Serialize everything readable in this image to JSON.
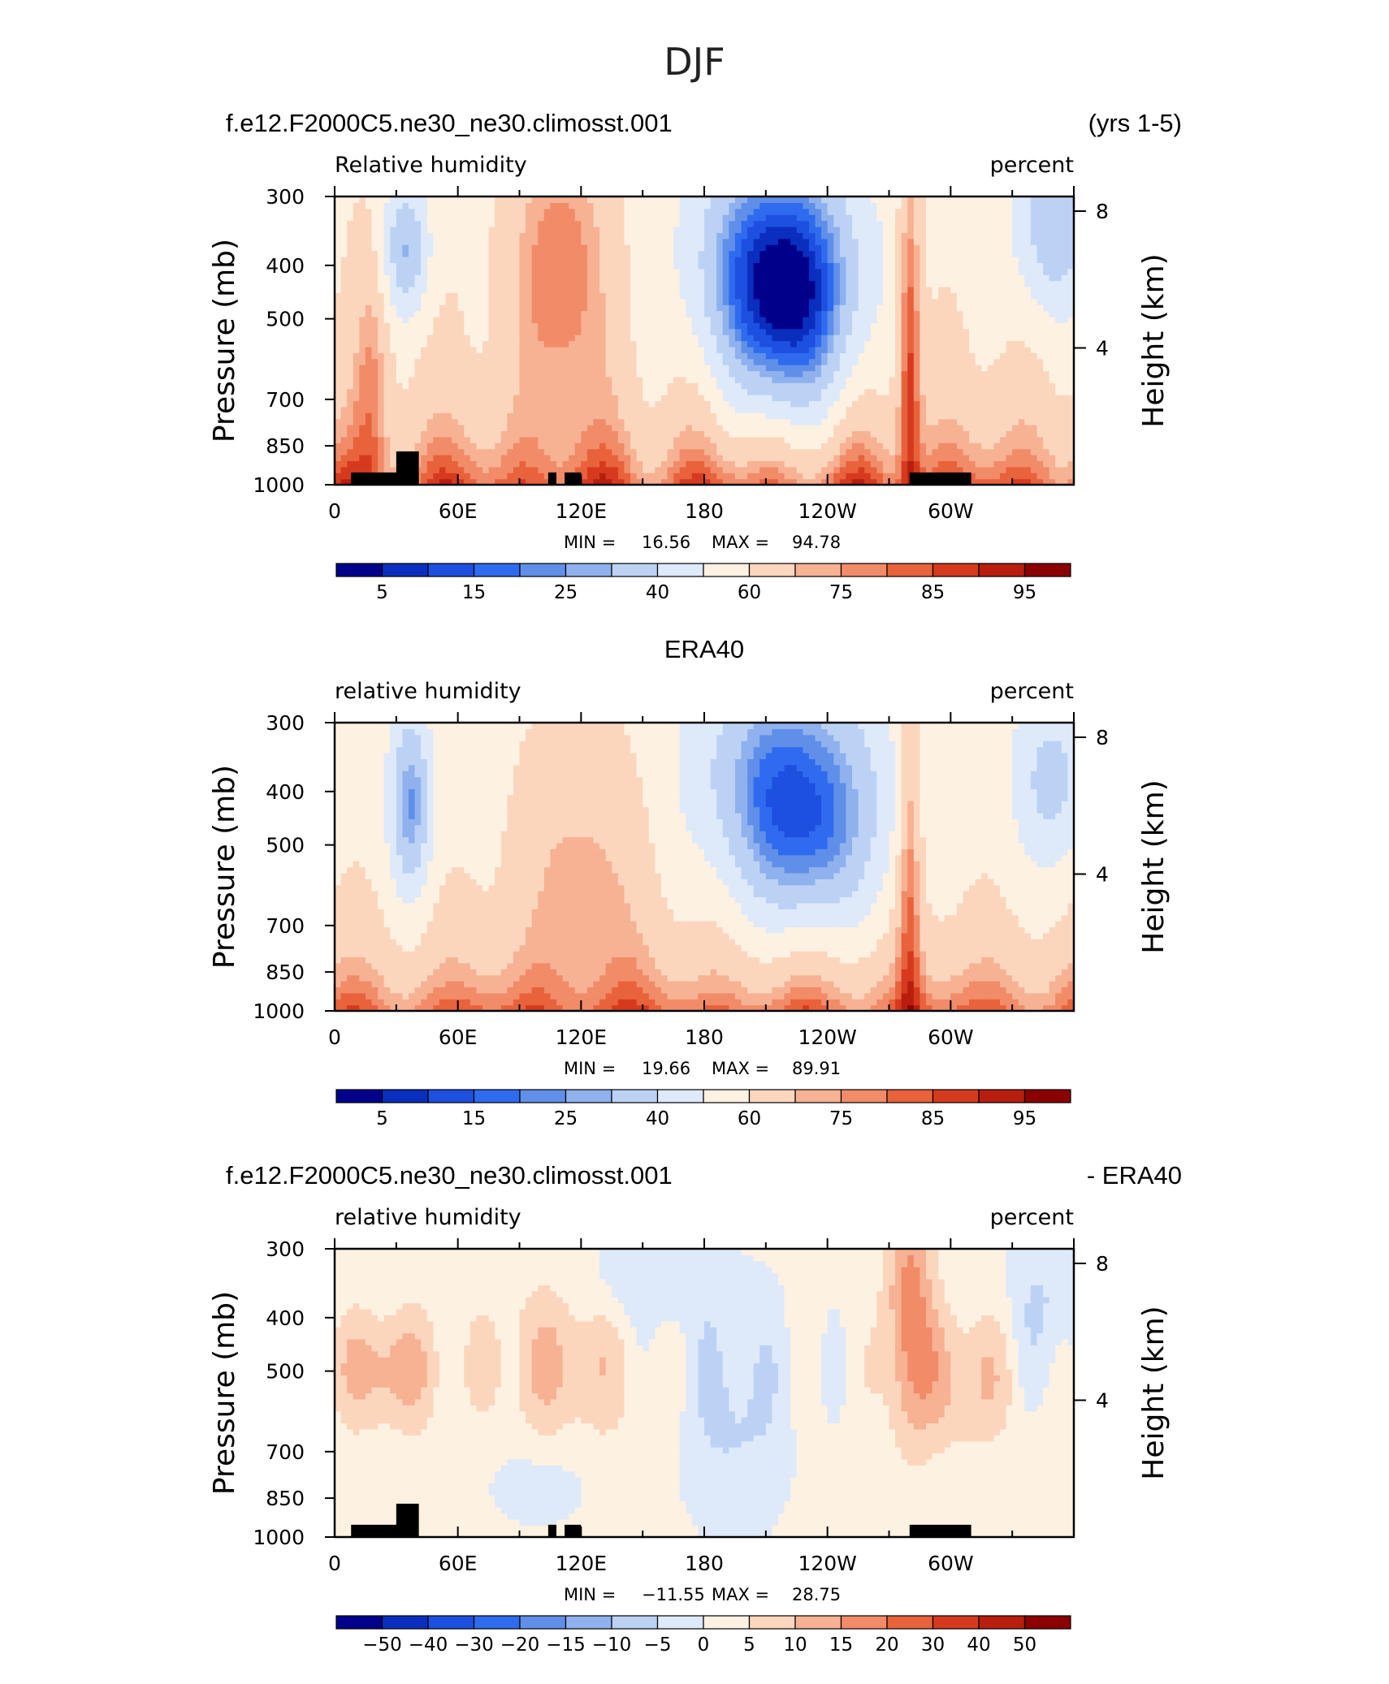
{
  "figure": {
    "title": "DJF"
  },
  "colors": {
    "rh_levels": [
      "#00008b",
      "#0a2fbf",
      "#1d4fe0",
      "#2f6bef",
      "#5f8fe8",
      "#8fb1ee",
      "#bcd2f5",
      "#dee9fa",
      "#fdf1e2",
      "#fbd6bd",
      "#f7b193",
      "#f18b68",
      "#e8623c",
      "#d63a1e",
      "#b81e0e",
      "#8b0000"
    ],
    "diff_levels": [
      "#00008b",
      "#0a2fbf",
      "#1d4fe0",
      "#2f6bef",
      "#5f8fe8",
      "#8fb1ee",
      "#bcd2f5",
      "#dee9fa",
      "#fdf1e2",
      "#fbd6bd",
      "#f7b193",
      "#f18b68",
      "#e8623c",
      "#d63a1e",
      "#b81e0e",
      "#8b0000"
    ]
  },
  "panels": [
    {
      "header_left": "f.e12.F2000C5.ne30_ne30.climosst.001",
      "header_right": "(yrs 1-5)",
      "header_center": "",
      "left_label": "Relative humidity",
      "right_label": "percent",
      "ylabel": "Pressure (mb)",
      "y2label": "Height (km)",
      "stats": {
        "min_label": "MIN =",
        "min": "16.56",
        "max_label": "MAX =",
        "max": "94.78"
      },
      "colorbar_labels": [
        "5",
        "15",
        "25",
        "40",
        "60",
        "75",
        "85",
        "95"
      ],
      "palette": "rh_levels",
      "land_mask": true
    },
    {
      "header_left": "",
      "header_right": "",
      "header_center": "ERA40",
      "left_label": "relative humidity",
      "right_label": "percent",
      "ylabel": "Pressure (mb)",
      "y2label": "Height (km)",
      "stats": {
        "min_label": "MIN =",
        "min": "19.66",
        "max_label": "MAX =",
        "max": "89.91"
      },
      "colorbar_labels": [
        "5",
        "15",
        "25",
        "40",
        "60",
        "75",
        "85",
        "95"
      ],
      "palette": "rh_levels",
      "land_mask": false
    },
    {
      "header_left": "f.e12.F2000C5.ne30_ne30.climosst.001",
      "header_right": "- ERA40",
      "header_center": "",
      "left_label": "relative humidity",
      "right_label": "percent",
      "ylabel": "Pressure (mb)",
      "y2label": "Height (km)",
      "stats": {
        "min_label": "MIN =",
        "min": "−11.55",
        "max_label": "MAX =",
        "max": "28.75"
      },
      "colorbar_labels": [
        "−50",
        "−40",
        "−30",
        "−20",
        "−15",
        "−10",
        "−5",
        "0",
        "5",
        "10",
        "15",
        "20",
        "30",
        "40",
        "50"
      ],
      "palette": "diff_levels",
      "land_mask": true
    }
  ],
  "chart_data": [
    {
      "type": "heatmap",
      "title": "f.e12.F2000C5.ne30_ne30.climosst.001 (yrs 1-5)",
      "variable": "Relative humidity",
      "units": "percent",
      "x_ticks": [
        "0",
        "60E",
        "120E",
        "180",
        "120W",
        "60W"
      ],
      "x_range": [
        0,
        360
      ],
      "y_ticks": [
        "300",
        "400",
        "500",
        "700",
        "850",
        "1000"
      ],
      "y_range": [
        1000,
        300
      ],
      "y2_ticks": [
        "4",
        "8"
      ],
      "xlabel": "",
      "ylabel": "Pressure (mb)",
      "y2label": "Height (km)",
      "contour_levels": [
        5,
        10,
        15,
        20,
        25,
        30,
        40,
        50,
        60,
        70,
        75,
        80,
        85,
        90,
        95
      ],
      "min": 16.56,
      "max": 94.78
    },
    {
      "type": "heatmap",
      "title": "ERA40",
      "variable": "relative humidity",
      "units": "percent",
      "x_ticks": [
        "0",
        "60E",
        "120E",
        "180",
        "120W",
        "60W"
      ],
      "x_range": [
        0,
        360
      ],
      "y_ticks": [
        "300",
        "400",
        "500",
        "700",
        "850",
        "1000"
      ],
      "y_range": [
        1000,
        300
      ],
      "y2_ticks": [
        "4",
        "8"
      ],
      "xlabel": "",
      "ylabel": "Pressure (mb)",
      "y2label": "Height (km)",
      "contour_levels": [
        5,
        10,
        15,
        20,
        25,
        30,
        40,
        50,
        60,
        70,
        75,
        80,
        85,
        90,
        95
      ],
      "min": 19.66,
      "max": 89.91
    },
    {
      "type": "heatmap",
      "title": "f.e12.F2000C5.ne30_ne30.climosst.001 - ERA40",
      "variable": "relative humidity",
      "units": "percent",
      "x_ticks": [
        "0",
        "60E",
        "120E",
        "180",
        "120W",
        "60W"
      ],
      "x_range": [
        0,
        360
      ],
      "y_ticks": [
        "300",
        "400",
        "500",
        "700",
        "850",
        "1000"
      ],
      "y_range": [
        1000,
        300
      ],
      "y2_ticks": [
        "4",
        "8"
      ],
      "xlabel": "",
      "ylabel": "Pressure (mb)",
      "y2label": "Height (km)",
      "contour_levels": [
        -50,
        -40,
        -30,
        -20,
        -15,
        -10,
        -5,
        0,
        5,
        10,
        15,
        20,
        30,
        40,
        50
      ],
      "min": -11.55,
      "max": 28.75
    }
  ]
}
